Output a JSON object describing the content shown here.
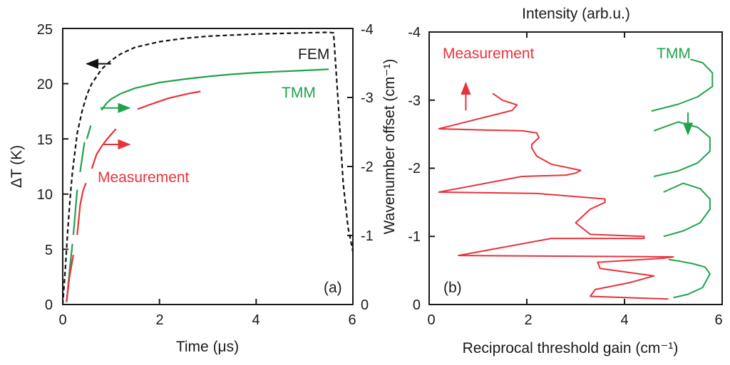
{
  "colors": {
    "measurement": "#e8323a",
    "tmm": "#1fa34a",
    "fem": "#111111",
    "axis": "#1a1a1a"
  },
  "chart_data": [
    {
      "id": "panel-a",
      "type": "line",
      "panel_label": "(a)",
      "xlabel": "Time (μs)",
      "ylabel": "ΔT (K)",
      "y2label": "Wavenumber offset (cm⁻¹)",
      "xlim": [
        0,
        6
      ],
      "ylim": [
        0,
        25
      ],
      "y2lim": [
        0,
        -4
      ],
      "xticks": [
        "0",
        "2",
        "4",
        "6"
      ],
      "yticks": [
        "0",
        "5",
        "10",
        "15",
        "20",
        "25"
      ],
      "y2ticks": [
        "0",
        "-1",
        "-2",
        "-3",
        "-4"
      ],
      "annotations": {
        "fem": "FEM",
        "tmm": "TMM",
        "measurement": "Measurement"
      },
      "series": [
        {
          "name": "FEM",
          "style": "dashed",
          "color": "#111111",
          "x": [
            0,
            0.05,
            0.1,
            0.15,
            0.2,
            0.3,
            0.4,
            0.5,
            0.6,
            0.8,
            1.0,
            1.2,
            1.5,
            2.0,
            2.5,
            3.0,
            3.5,
            4.0,
            4.5,
            5.0,
            5.5,
            5.6,
            5.7,
            5.8,
            5.9,
            6.0
          ],
          "y": [
            0,
            3,
            6.5,
            9.5,
            12,
            15.5,
            17.5,
            19,
            20,
            21.3,
            22.1,
            22.7,
            23.3,
            23.8,
            24.1,
            24.3,
            24.4,
            24.5,
            24.55,
            24.6,
            24.65,
            24.6,
            18,
            11,
            7,
            4.8
          ]
        },
        {
          "name": "TMM",
          "style": "solid-segmented",
          "color": "#1fa34a",
          "segments": [
            {
              "x": [
                0.08,
                0.14,
                0.2
              ],
              "y": [
                0.2,
                3,
                5.5
              ]
            },
            {
              "x": [
                0.22,
                0.3
              ],
              "y": [
                6.3,
                10.4
              ]
            },
            {
              "x": [
                0.36,
                0.45
              ],
              "y": [
                12,
                14.7
              ]
            },
            {
              "x": [
                0.5,
                0.58
              ],
              "y": [
                15,
                16.2
              ]
            },
            {
              "x": [
                0.8,
                0.9,
                1.0,
                1.2,
                1.5,
                2.0,
                2.5,
                3.0,
                3.5,
                4.0,
                4.5,
                5.0,
                5.5
              ],
              "y": [
                17.6,
                18.2,
                18.6,
                19.1,
                19.6,
                20.1,
                20.4,
                20.65,
                20.85,
                21.0,
                21.1,
                21.2,
                21.3
              ]
            }
          ]
        },
        {
          "name": "Measurement",
          "style": "solid-segmented",
          "color": "#e8323a",
          "segments": [
            {
              "x": [
                0.08,
                0.14,
                0.22
              ],
              "y": [
                0.3,
                2.5,
                4.5
              ]
            },
            {
              "x": [
                0.3,
                0.36,
                0.42,
                0.48
              ],
              "y": [
                6.3,
                9,
                10.3,
                11
              ]
            },
            {
              "x": [
                0.6,
                0.7,
                0.8,
                0.9,
                1.0,
                1.1
              ],
              "y": [
                12.3,
                13.6,
                14.3,
                14.9,
                15.4,
                15.9
              ]
            },
            {
              "x": [
                1.55,
                1.8,
                2.0,
                2.2,
                2.4,
                2.6,
                2.85
              ],
              "y": [
                17.7,
                18.1,
                18.4,
                18.7,
                18.9,
                19.1,
                19.3
              ]
            }
          ]
        }
      ],
      "arrows": [
        {
          "color": "#111111",
          "from": [
            1.0,
            21.8
          ],
          "to": [
            0.5,
            21.8
          ]
        },
        {
          "color": "#1fa34a",
          "from": [
            0.78,
            17.8
          ],
          "to": [
            1.38,
            17.8
          ]
        },
        {
          "color": "#e8323a",
          "from": [
            0.85,
            14.5
          ],
          "to": [
            1.38,
            14.5
          ]
        }
      ]
    },
    {
      "id": "panel-b",
      "type": "line",
      "panel_label": "(b)",
      "xlabel": "Reciprocal threshold gain (cm⁻¹)",
      "x2label": "Intensity (arb.u.)",
      "ylabel": "Wavenumber offset (cm⁻¹)",
      "xlim": [
        0,
        6
      ],
      "ylim": [
        0,
        -4
      ],
      "xticks": [
        "0",
        "2",
        "4",
        "6"
      ],
      "yticks": [
        "0",
        "-1",
        "-2",
        "-3",
        "-4"
      ],
      "annotations": {
        "measurement": "Measurement",
        "tmm": "TMM"
      },
      "series": [
        {
          "name": "Measurement",
          "color": "#e8323a",
          "x": [
            4.9,
            3.3,
            3.4,
            4.1,
            4.6,
            4.1,
            3.5,
            3.45,
            4.8,
            5.0,
            0.6,
            2.5,
            4.4,
            4.4,
            3.3,
            3.0,
            3.3,
            3.6,
            3.6,
            2.2,
            0.2,
            1.9,
            2.8,
            3.0,
            3.1,
            2.5,
            2.2,
            2.1,
            2.1,
            2.25,
            2.2,
            1.9,
            1.2,
            0.2,
            1.7,
            1.8,
            1.5,
            1.3
          ],
          "y": [
            -0.08,
            -0.12,
            -0.22,
            -0.32,
            -0.42,
            -0.47,
            -0.53,
            -0.62,
            -0.68,
            -0.7,
            -0.72,
            -0.97,
            -0.97,
            -1.0,
            -1.03,
            -1.2,
            -1.4,
            -1.5,
            -1.55,
            -1.63,
            -1.65,
            -1.88,
            -1.9,
            -1.93,
            -1.97,
            -2.06,
            -2.18,
            -2.3,
            -2.35,
            -2.45,
            -2.52,
            -2.55,
            -2.56,
            -2.58,
            -2.85,
            -2.93,
            -3.0,
            -3.1
          ]
        },
        {
          "name": "TMM",
          "color": "#1fa34a",
          "segments": [
            {
              "x": [
                5.0,
                5.3,
                5.6,
                5.75,
                5.65,
                5.4,
                5.1,
                4.9
              ],
              "y": [
                -0.1,
                -0.15,
                -0.25,
                -0.45,
                -0.55,
                -0.6,
                -0.64,
                -0.66
              ]
            },
            {
              "x": [
                4.8,
                5.2,
                5.55,
                5.75,
                5.75,
                5.55,
                5.2,
                4.8
              ],
              "y": [
                -1.0,
                -1.08,
                -1.2,
                -1.4,
                -1.55,
                -1.7,
                -1.78,
                -1.65
              ]
            },
            {
              "x": [
                4.6,
                5.1,
                5.5,
                5.75,
                5.75,
                5.5,
                5.1,
                4.6
              ],
              "y": [
                -1.88,
                -1.96,
                -2.08,
                -2.25,
                -2.45,
                -2.6,
                -2.68,
                -2.55
              ]
            },
            {
              "x": [
                4.55,
                5.1,
                5.5,
                5.8,
                5.8,
                5.6,
                5.35
              ],
              "y": [
                -2.84,
                -2.94,
                -3.05,
                -3.2,
                -3.4,
                -3.55,
                -3.6
              ]
            }
          ]
        }
      ],
      "arrows": [
        {
          "color": "#e8323a",
          "from": [
            0.75,
            -2.85
          ],
          "to": [
            0.75,
            -3.25
          ]
        },
        {
          "color": "#1fa34a",
          "from": [
            5.3,
            -2.82
          ],
          "to": [
            5.3,
            -2.5
          ]
        }
      ]
    }
  ]
}
